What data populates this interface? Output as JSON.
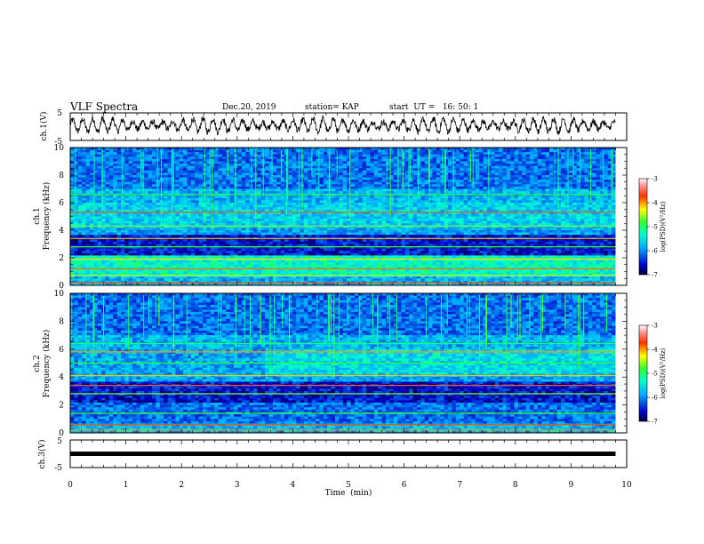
{
  "header": {
    "title": "VLF Spectra",
    "date": "Dec.20, 2019",
    "station": "station= KAP",
    "start": "start  UT =   16: 50: 1"
  },
  "chart_data": [
    {
      "type": "line",
      "panel": "ch1-waveform",
      "ylabel": "ch.1(V)",
      "ylim": [
        -5,
        5
      ],
      "yticks": [
        5,
        -5
      ],
      "xlim": [
        0,
        10
      ],
      "x_end": 9.8,
      "description_values": {
        "baseline_v": 0.5,
        "amplitude_v": 2.5,
        "oscillation_period_min": 0.18
      }
    },
    {
      "type": "heatmap",
      "panel": "ch1-spectrogram",
      "ylabel_line1": "ch.1",
      "ylabel_line2": "Frequency (kHz)",
      "ylim": [
        0,
        10
      ],
      "yticks": [
        0,
        2,
        4,
        6,
        8,
        10
      ],
      "xlim": [
        0,
        10
      ],
      "x_end": 9.8,
      "colorbar": {
        "label": "log(PSD)(V²/Hz)",
        "ticks": [
          -3,
          -4,
          -5,
          -6,
          -7
        ],
        "range": [
          -7,
          -3
        ]
      }
    },
    {
      "type": "heatmap",
      "panel": "ch2-spectrogram",
      "ylabel_line1": "ch.2",
      "ylabel_line2": "Frequency (kHz)",
      "ylim": [
        0,
        10
      ],
      "yticks": [
        0,
        2,
        4,
        6,
        8,
        10
      ],
      "xlim": [
        0,
        10
      ],
      "x_end": 9.8,
      "colorbar": {
        "label": "log(PSD)(V²/Hz)",
        "ticks": [
          -3,
          -4,
          -5,
          -6,
          -7
        ],
        "range": [
          -7,
          -3
        ]
      }
    },
    {
      "type": "line",
      "panel": "ch3-waveform",
      "ylabel": "ch.3(V)",
      "ylim": [
        -5,
        5
      ],
      "yticks": [
        5,
        -5
      ],
      "xlim": [
        0,
        10
      ],
      "x_end": 9.8,
      "description_values": {
        "level_v": 0
      }
    }
  ],
  "x_axis": {
    "label": "Time  (min)",
    "ticks": [
      "0",
      "1",
      "2",
      "3",
      "4",
      "5",
      "6",
      "7",
      "8",
      "9",
      "10"
    ]
  }
}
